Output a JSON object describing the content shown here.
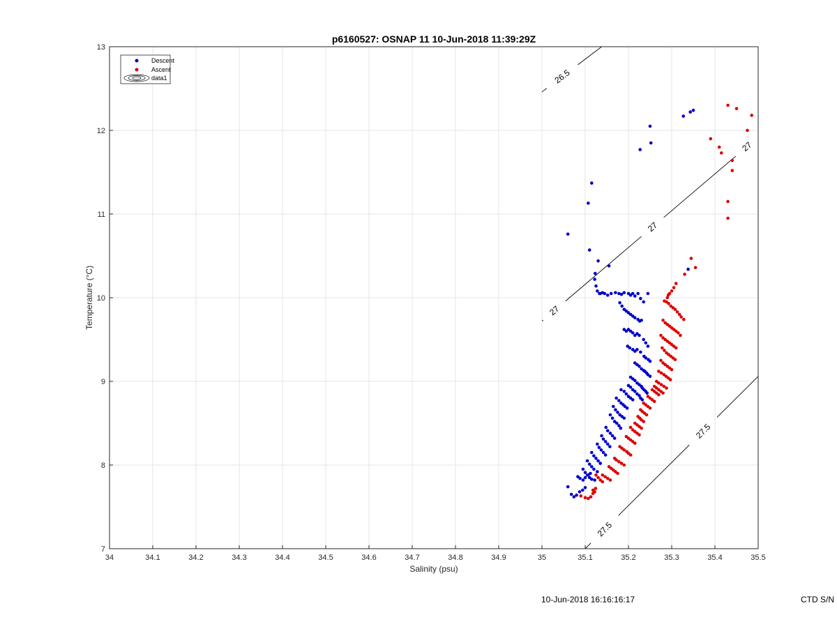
{
  "footer": {
    "timestamp": "10-Jun-2018 16:16:16:17",
    "ctd": "CTD S/N"
  },
  "chart_data": {
    "type": "scatter",
    "title": "p6160527: OSNAP 11 10-Jun-2018 11:39:29Z",
    "xlabel": "Salinity (psu)",
    "ylabel": "Temperature (°C)",
    "xlim": [
      34,
      35.5
    ],
    "ylim": [
      7,
      13
    ],
    "x_ticks": [
      "34",
      "34.1",
      "34.2",
      "34.3",
      "34.4",
      "34.5",
      "34.6",
      "34.7",
      "34.8",
      "34.9",
      "35",
      "35.1",
      "35.2",
      "35.3",
      "35.4",
      "35.5"
    ],
    "y_ticks": [
      "7",
      "8",
      "9",
      "10",
      "11",
      "12",
      "13"
    ],
    "grid": true,
    "legend": {
      "placement": "top-left",
      "entries": [
        "Descent",
        "Ascent",
        "data1"
      ]
    },
    "colors": {
      "descent": "#0000cc",
      "ascent": "#dd0000",
      "contour": "#000000"
    },
    "contours": [
      {
        "label": "26.5",
        "points": [
          [
            35.0,
            12.46
          ],
          [
            35.138,
            13.0
          ]
        ],
        "label_at": [
          35.046,
          12.65
        ]
      },
      {
        "label": "27",
        "points": [
          [
            35.0,
            9.72
          ],
          [
            35.5,
            11.92
          ]
        ],
        "label_at": [
          [
            35.028,
            9.85
          ],
          [
            35.255,
            10.85
          ],
          [
            35.475,
            11.8
          ]
        ]
      },
      {
        "label": "27.5",
        "points": [
          [
            35.1,
            7.0
          ],
          [
            35.5,
            9.06
          ]
        ],
        "label_at": [
          [
            35.128,
            7.32
          ],
          [
            35.37,
            8.42
          ]
        ]
      }
    ],
    "series": [
      {
        "name": "Descent",
        "x": [
          35.06,
          35.107,
          35.115,
          35.11,
          35.123,
          35.13,
          35.155,
          35.227,
          35.252,
          35.25,
          35.327,
          35.343,
          35.35,
          35.338,
          35.122,
          35.125,
          35.128,
          35.133,
          35.135,
          35.14,
          35.145,
          35.152,
          35.16,
          35.17,
          35.178,
          35.184,
          35.19,
          35.2,
          35.205,
          35.21,
          35.215,
          35.222,
          35.228,
          35.235,
          35.245,
          35.18,
          35.185,
          35.19,
          35.195,
          35.2,
          35.205,
          35.21,
          35.215,
          35.222,
          35.226,
          35.23,
          35.19,
          35.195,
          35.2,
          35.205,
          35.21,
          35.215,
          35.22,
          35.225,
          35.235,
          35.24,
          35.245,
          35.198,
          35.203,
          35.21,
          35.215,
          35.22,
          35.228,
          35.236,
          35.24,
          35.246,
          35.25,
          35.215,
          35.22,
          35.225,
          35.23,
          35.235,
          35.238,
          35.242,
          35.245,
          35.25,
          35.205,
          35.21,
          35.215,
          35.22,
          35.225,
          35.23,
          35.232,
          35.236,
          35.24,
          35.243,
          35.2,
          35.205,
          35.21,
          35.215,
          35.22,
          35.225,
          35.228,
          35.232,
          35.183,
          35.19,
          35.195,
          35.2,
          35.205,
          35.21,
          35.172,
          35.178,
          35.183,
          35.188,
          35.192,
          35.197,
          35.165,
          35.17,
          35.175,
          35.18,
          35.185,
          35.19,
          35.158,
          35.163,
          35.168,
          35.173,
          35.178,
          35.182,
          35.148,
          35.152,
          35.158,
          35.163,
          35.168,
          35.138,
          35.142,
          35.147,
          35.152,
          35.157,
          35.128,
          35.132,
          35.137,
          35.142,
          35.147,
          35.115,
          35.12,
          35.125,
          35.13,
          35.135,
          35.105,
          35.11,
          35.115,
          35.12,
          35.128,
          35.095,
          35.1,
          35.105,
          35.11,
          35.115,
          35.122,
          35.083,
          35.088,
          35.095,
          35.1,
          35.107,
          35.112,
          35.06,
          35.068,
          35.074,
          35.08,
          35.087,
          35.094,
          35.1
        ],
        "y": [
          10.76,
          11.13,
          11.37,
          10.57,
          10.29,
          10.44,
          10.38,
          11.77,
          11.85,
          12.05,
          12.17,
          12.22,
          12.24,
          10.34,
          10.22,
          10.14,
          10.08,
          10.05,
          10.05,
          10.06,
          10.05,
          10.03,
          10.05,
          10.06,
          10.05,
          10.04,
          10.06,
          10.05,
          10.03,
          10.05,
          10.02,
          10.05,
          9.99,
          9.95,
          10.05,
          9.94,
          9.9,
          9.86,
          9.84,
          9.82,
          9.8,
          9.78,
          9.76,
          9.74,
          9.72,
          9.73,
          9.62,
          9.6,
          9.62,
          9.6,
          9.58,
          9.55,
          9.57,
          9.55,
          9.5,
          9.46,
          9.42,
          9.42,
          9.4,
          9.38,
          9.36,
          9.38,
          9.35,
          9.3,
          9.28,
          9.26,
          9.24,
          9.22,
          9.2,
          9.18,
          9.15,
          9.13,
          9.12,
          9.1,
          9.08,
          9.06,
          9.05,
          9.03,
          9.01,
          8.98,
          8.96,
          8.94,
          8.92,
          8.9,
          8.88,
          8.86,
          8.95,
          8.93,
          8.9,
          8.88,
          8.85,
          8.83,
          8.8,
          8.78,
          8.9,
          8.88,
          8.85,
          8.82,
          8.8,
          8.78,
          8.8,
          8.77,
          8.74,
          8.72,
          8.7,
          8.68,
          8.7,
          8.66,
          8.63,
          8.6,
          8.58,
          8.56,
          8.6,
          8.56,
          8.52,
          8.5,
          8.47,
          8.44,
          8.45,
          8.41,
          8.38,
          8.35,
          8.32,
          8.35,
          8.31,
          8.28,
          8.25,
          8.22,
          8.25,
          8.21,
          8.18,
          8.15,
          8.12,
          8.15,
          8.11,
          8.08,
          8.05,
          8.02,
          8.05,
          8.01,
          7.98,
          7.95,
          7.92,
          7.95,
          7.91,
          7.88,
          7.85,
          7.83,
          7.82,
          7.86,
          7.84,
          7.82,
          7.85,
          7.88,
          7.9,
          7.74,
          7.65,
          7.62,
          7.64,
          7.68,
          7.7,
          7.73
        ]
      },
      {
        "name": "Ascent",
        "x": [
          35.43,
          35.45,
          35.485,
          35.475,
          35.41,
          35.39,
          35.415,
          35.44,
          35.44,
          35.43,
          35.43,
          35.345,
          35.355,
          35.33,
          35.31,
          35.305,
          35.3,
          35.295,
          35.292,
          35.29,
          35.283,
          35.288,
          35.293,
          35.298,
          35.303,
          35.308,
          35.313,
          35.318,
          35.322,
          35.328,
          35.28,
          35.285,
          35.29,
          35.295,
          35.3,
          35.305,
          35.31,
          35.315,
          35.32,
          35.275,
          35.28,
          35.285,
          35.29,
          35.295,
          35.3,
          35.305,
          35.31,
          35.278,
          35.283,
          35.288,
          35.293,
          35.298,
          35.303,
          35.308,
          35.275,
          35.28,
          35.285,
          35.29,
          35.295,
          35.3,
          35.27,
          35.276,
          35.282,
          35.287,
          35.292,
          35.297,
          35.265,
          35.27,
          35.276,
          35.282,
          35.288,
          35.26,
          35.265,
          35.27,
          35.275,
          35.28,
          35.255,
          35.26,
          35.265,
          35.27,
          35.245,
          35.25,
          35.255,
          35.26,
          35.235,
          35.24,
          35.245,
          35.25,
          35.228,
          35.232,
          35.237,
          35.242,
          35.222,
          35.226,
          35.23,
          35.235,
          35.215,
          35.22,
          35.225,
          35.23,
          35.205,
          35.21,
          35.215,
          35.22,
          35.225,
          35.195,
          35.2,
          35.205,
          35.21,
          35.215,
          35.18,
          35.185,
          35.19,
          35.196,
          35.2,
          35.205,
          35.168,
          35.172,
          35.178,
          35.184,
          35.19,
          35.155,
          35.16,
          35.165,
          35.17,
          35.175,
          35.14,
          35.146,
          35.152,
          35.158,
          35.125,
          35.13,
          35.135,
          35.14,
          35.118,
          35.122,
          35.113,
          35.09,
          35.1,
          35.107,
          35.118,
          35.124
        ],
        "y": [
          12.3,
          12.26,
          12.18,
          12.0,
          11.8,
          11.9,
          11.73,
          11.64,
          11.52,
          11.15,
          10.95,
          10.47,
          10.36,
          10.28,
          10.17,
          10.12,
          10.08,
          10.05,
          10.03,
          10.0,
          9.96,
          9.95,
          9.93,
          9.9,
          9.88,
          9.86,
          9.83,
          9.8,
          9.77,
          9.74,
          9.73,
          9.7,
          9.68,
          9.66,
          9.64,
          9.62,
          9.6,
          9.58,
          9.55,
          9.55,
          9.52,
          9.5,
          9.48,
          9.46,
          9.44,
          9.42,
          9.4,
          9.4,
          9.37,
          9.34,
          9.32,
          9.3,
          9.28,
          9.26,
          9.25,
          9.22,
          9.2,
          9.18,
          9.16,
          9.14,
          9.12,
          9.1,
          9.08,
          9.06,
          9.04,
          9.02,
          9.0,
          8.98,
          8.96,
          8.94,
          8.92,
          8.94,
          8.92,
          8.9,
          8.88,
          8.86,
          8.9,
          8.88,
          8.86,
          8.84,
          8.82,
          8.8,
          8.78,
          8.76,
          8.74,
          8.72,
          8.7,
          8.68,
          8.66,
          8.64,
          8.62,
          8.6,
          8.58,
          8.56,
          8.54,
          8.52,
          8.5,
          8.48,
          8.46,
          8.44,
          8.45,
          8.42,
          8.4,
          8.38,
          8.36,
          8.34,
          8.32,
          8.3,
          8.28,
          8.26,
          8.22,
          8.2,
          8.18,
          8.16,
          8.14,
          8.12,
          8.08,
          8.06,
          8.04,
          8.02,
          8.0,
          7.98,
          7.96,
          7.94,
          7.92,
          7.9,
          7.88,
          7.86,
          7.84,
          7.82,
          7.88,
          7.85,
          7.82,
          7.8,
          7.7,
          7.68,
          7.62,
          7.63,
          7.61,
          7.6,
          7.66,
          7.72
        ]
      }
    ]
  }
}
